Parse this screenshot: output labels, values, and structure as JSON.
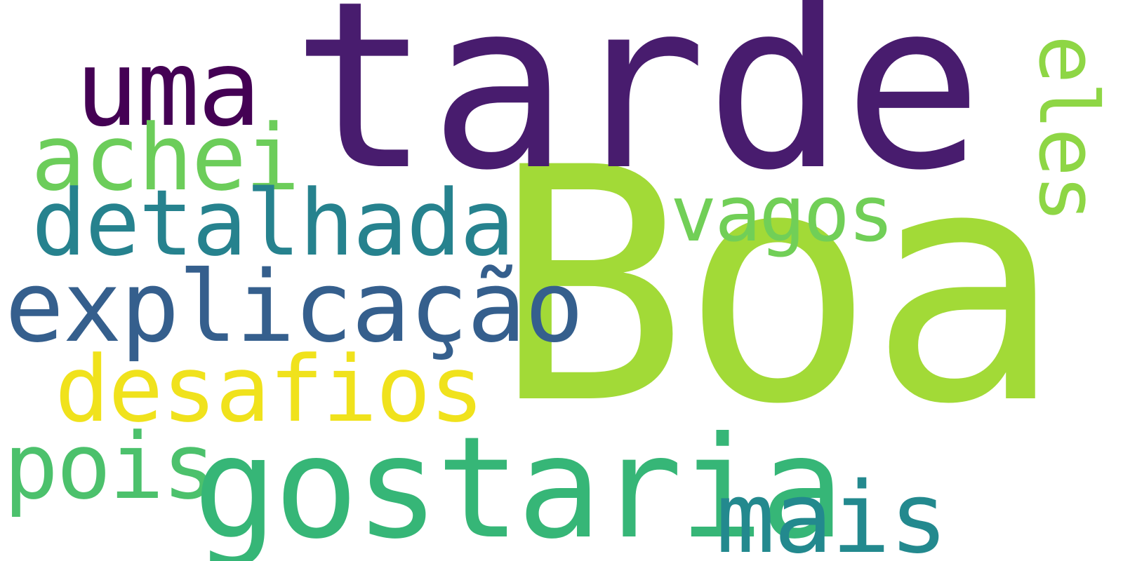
{
  "words": [
    {
      "key": "boa",
      "text": "Boa",
      "color": "#a2da37"
    },
    {
      "key": "tarde",
      "text": "tarde",
      "color": "#481c6e"
    },
    {
      "key": "uma",
      "text": "uma",
      "color": "#440154"
    },
    {
      "key": "achei",
      "text": "achei",
      "color": "#6ccd5a"
    },
    {
      "key": "detalhada",
      "text": "detalhada",
      "color": "#26828e"
    },
    {
      "key": "explicacao",
      "text": "explicação",
      "color": "#355f8d"
    },
    {
      "key": "desafios",
      "text": "desafios",
      "color": "#f0e21c"
    },
    {
      "key": "pois",
      "text": "pois",
      "color": "#4cc16c"
    },
    {
      "key": "gostaria",
      "text": "gostaria",
      "color": "#36b677"
    },
    {
      "key": "mais",
      "text": "mais",
      "color": "#23898e"
    },
    {
      "key": "vagos",
      "text": "vagos",
      "color": "#71cf57"
    },
    {
      "key": "eles",
      "text": "eles",
      "color": "#8ed645"
    }
  ]
}
